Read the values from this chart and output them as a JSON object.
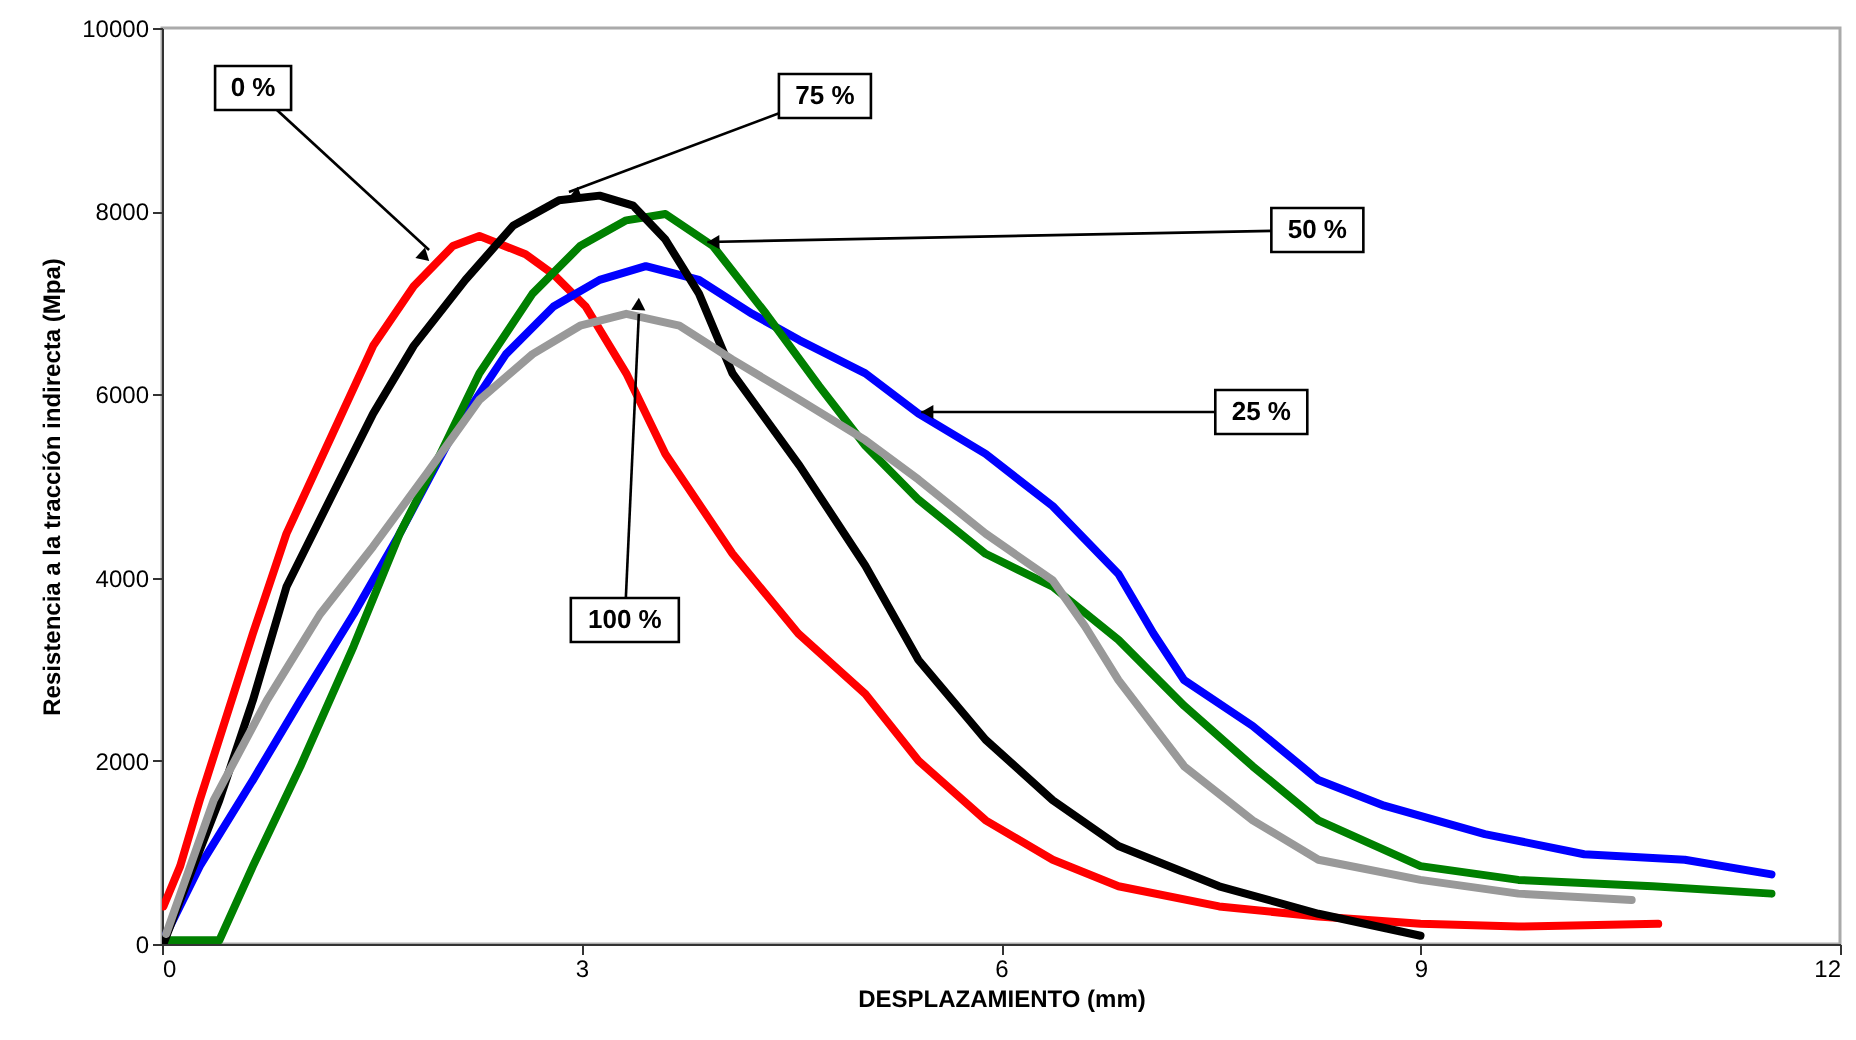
{
  "chart_data": {
    "type": "line",
    "xlabel": "DESPLAZAMIENTO (mm)",
    "ylabel": "Resistencia a la tracción indirecta (Mpa)",
    "xlim": [
      0,
      12
    ],
    "xticks": [
      0,
      3,
      6,
      9,
      12
    ],
    "ylim": [
      0,
      10000
    ],
    "yticks": [
      0,
      2000,
      4000,
      6000,
      8000,
      10000
    ],
    "marker": "none",
    "line_style": "solid",
    "series": [
      {
        "color": "#ff0000",
        "x": [
          0.01,
          0.13,
          0.27,
          0.65,
          0.89,
          1.22,
          1.51,
          1.8,
          2.08,
          2.27,
          2.6,
          2.8,
          3.03,
          3.32,
          3.6,
          4.08,
          4.55,
          5.03,
          5.41,
          5.89,
          6.37,
          6.84,
          7.56,
          8.27,
          9.0,
          9.7,
          10.7
        ],
        "values": [
          410,
          850,
          1570,
          3390,
          4480,
          5570,
          6530,
          7180,
          7620,
          7730,
          7530,
          7310,
          6960,
          6230,
          5350,
          4260,
          3390,
          2730,
          2000,
          1350,
          920,
          630,
          410,
          300,
          220,
          190,
          220
        ]
      },
      {
        "color": "#0000ff",
        "x": [
          0.03,
          0.27,
          0.65,
          0.99,
          1.37,
          1.7,
          2.08,
          2.46,
          2.8,
          3.13,
          3.46,
          3.84,
          4.22,
          4.56,
          5.03,
          5.41,
          5.89,
          6.37,
          6.84,
          7.09,
          7.31,
          7.8,
          8.27,
          8.74,
          9.46,
          10.17,
          10.89,
          11.51
        ],
        "values": [
          110,
          850,
          1790,
          2660,
          3600,
          4480,
          5570,
          6440,
          6960,
          7250,
          7400,
          7250,
          6880,
          6590,
          6230,
          5790,
          5350,
          4780,
          4040,
          3390,
          2880,
          2380,
          1790,
          1510,
          1200,
          980,
          920,
          760
        ]
      },
      {
        "color": "#008000",
        "x": [
          0.01,
          0.41,
          0.65,
          0.99,
          1.37,
          1.7,
          1.99,
          2.27,
          2.65,
          2.99,
          3.32,
          3.6,
          3.94,
          4.32,
          4.7,
          5.03,
          5.41,
          5.89,
          6.37,
          6.84,
          7.31,
          7.8,
          8.27,
          9.0,
          9.7,
          10.66,
          11.51
        ],
        "values": [
          40,
          40,
          850,
          1940,
          3250,
          4480,
          5350,
          6230,
          7100,
          7620,
          7900,
          7970,
          7620,
          6880,
          6090,
          5440,
          4850,
          4260,
          3900,
          3320,
          2600,
          1940,
          1350,
          850,
          700,
          630,
          550
        ]
      },
      {
        "color": "#000000",
        "x": [
          0.01,
          0.13,
          0.41,
          0.65,
          0.89,
          1.22,
          1.51,
          1.8,
          2.17,
          2.51,
          2.84,
          3.13,
          3.37,
          3.6,
          3.84,
          4.08,
          4.56,
          5.03,
          5.41,
          5.89,
          6.37,
          6.84,
          7.56,
          8.27,
          9.0
        ],
        "values": [
          0,
          480,
          1570,
          2660,
          3900,
          4910,
          5790,
          6530,
          7250,
          7840,
          8120,
          8170,
          8060,
          7690,
          7100,
          6230,
          5220,
          4130,
          3100,
          2230,
          1570,
          1070,
          630,
          330,
          90
        ]
      },
      {
        "color": "#999999",
        "x": [
          0.03,
          0.37,
          0.75,
          1.13,
          1.51,
          1.89,
          2.27,
          2.65,
          2.99,
          3.32,
          3.7,
          4.08,
          4.56,
          5.03,
          5.41,
          5.89,
          6.37,
          6.6,
          6.84,
          7.31,
          7.8,
          8.27,
          9.0,
          9.7,
          10.51
        ],
        "values": [
          110,
          1570,
          2660,
          3600,
          4340,
          5130,
          5940,
          6440,
          6750,
          6880,
          6750,
          6380,
          5940,
          5500,
          5070,
          4480,
          3970,
          3470,
          2880,
          1940,
          1350,
          920,
          700,
          550,
          480
        ]
      }
    ],
    "annotations": [
      {
        "text": "0 %",
        "x": 1.91,
        "y": 7576
      },
      {
        "text": "75 %",
        "x": 2.91,
        "y": 8210
      },
      {
        "text": "50 %",
        "x": 3.9,
        "y": 7664
      },
      {
        "text": "25 %",
        "x": 5.43,
        "y": 5808
      },
      {
        "text": "100 %",
        "x": 3.41,
        "y": 6878
      }
    ]
  }
}
